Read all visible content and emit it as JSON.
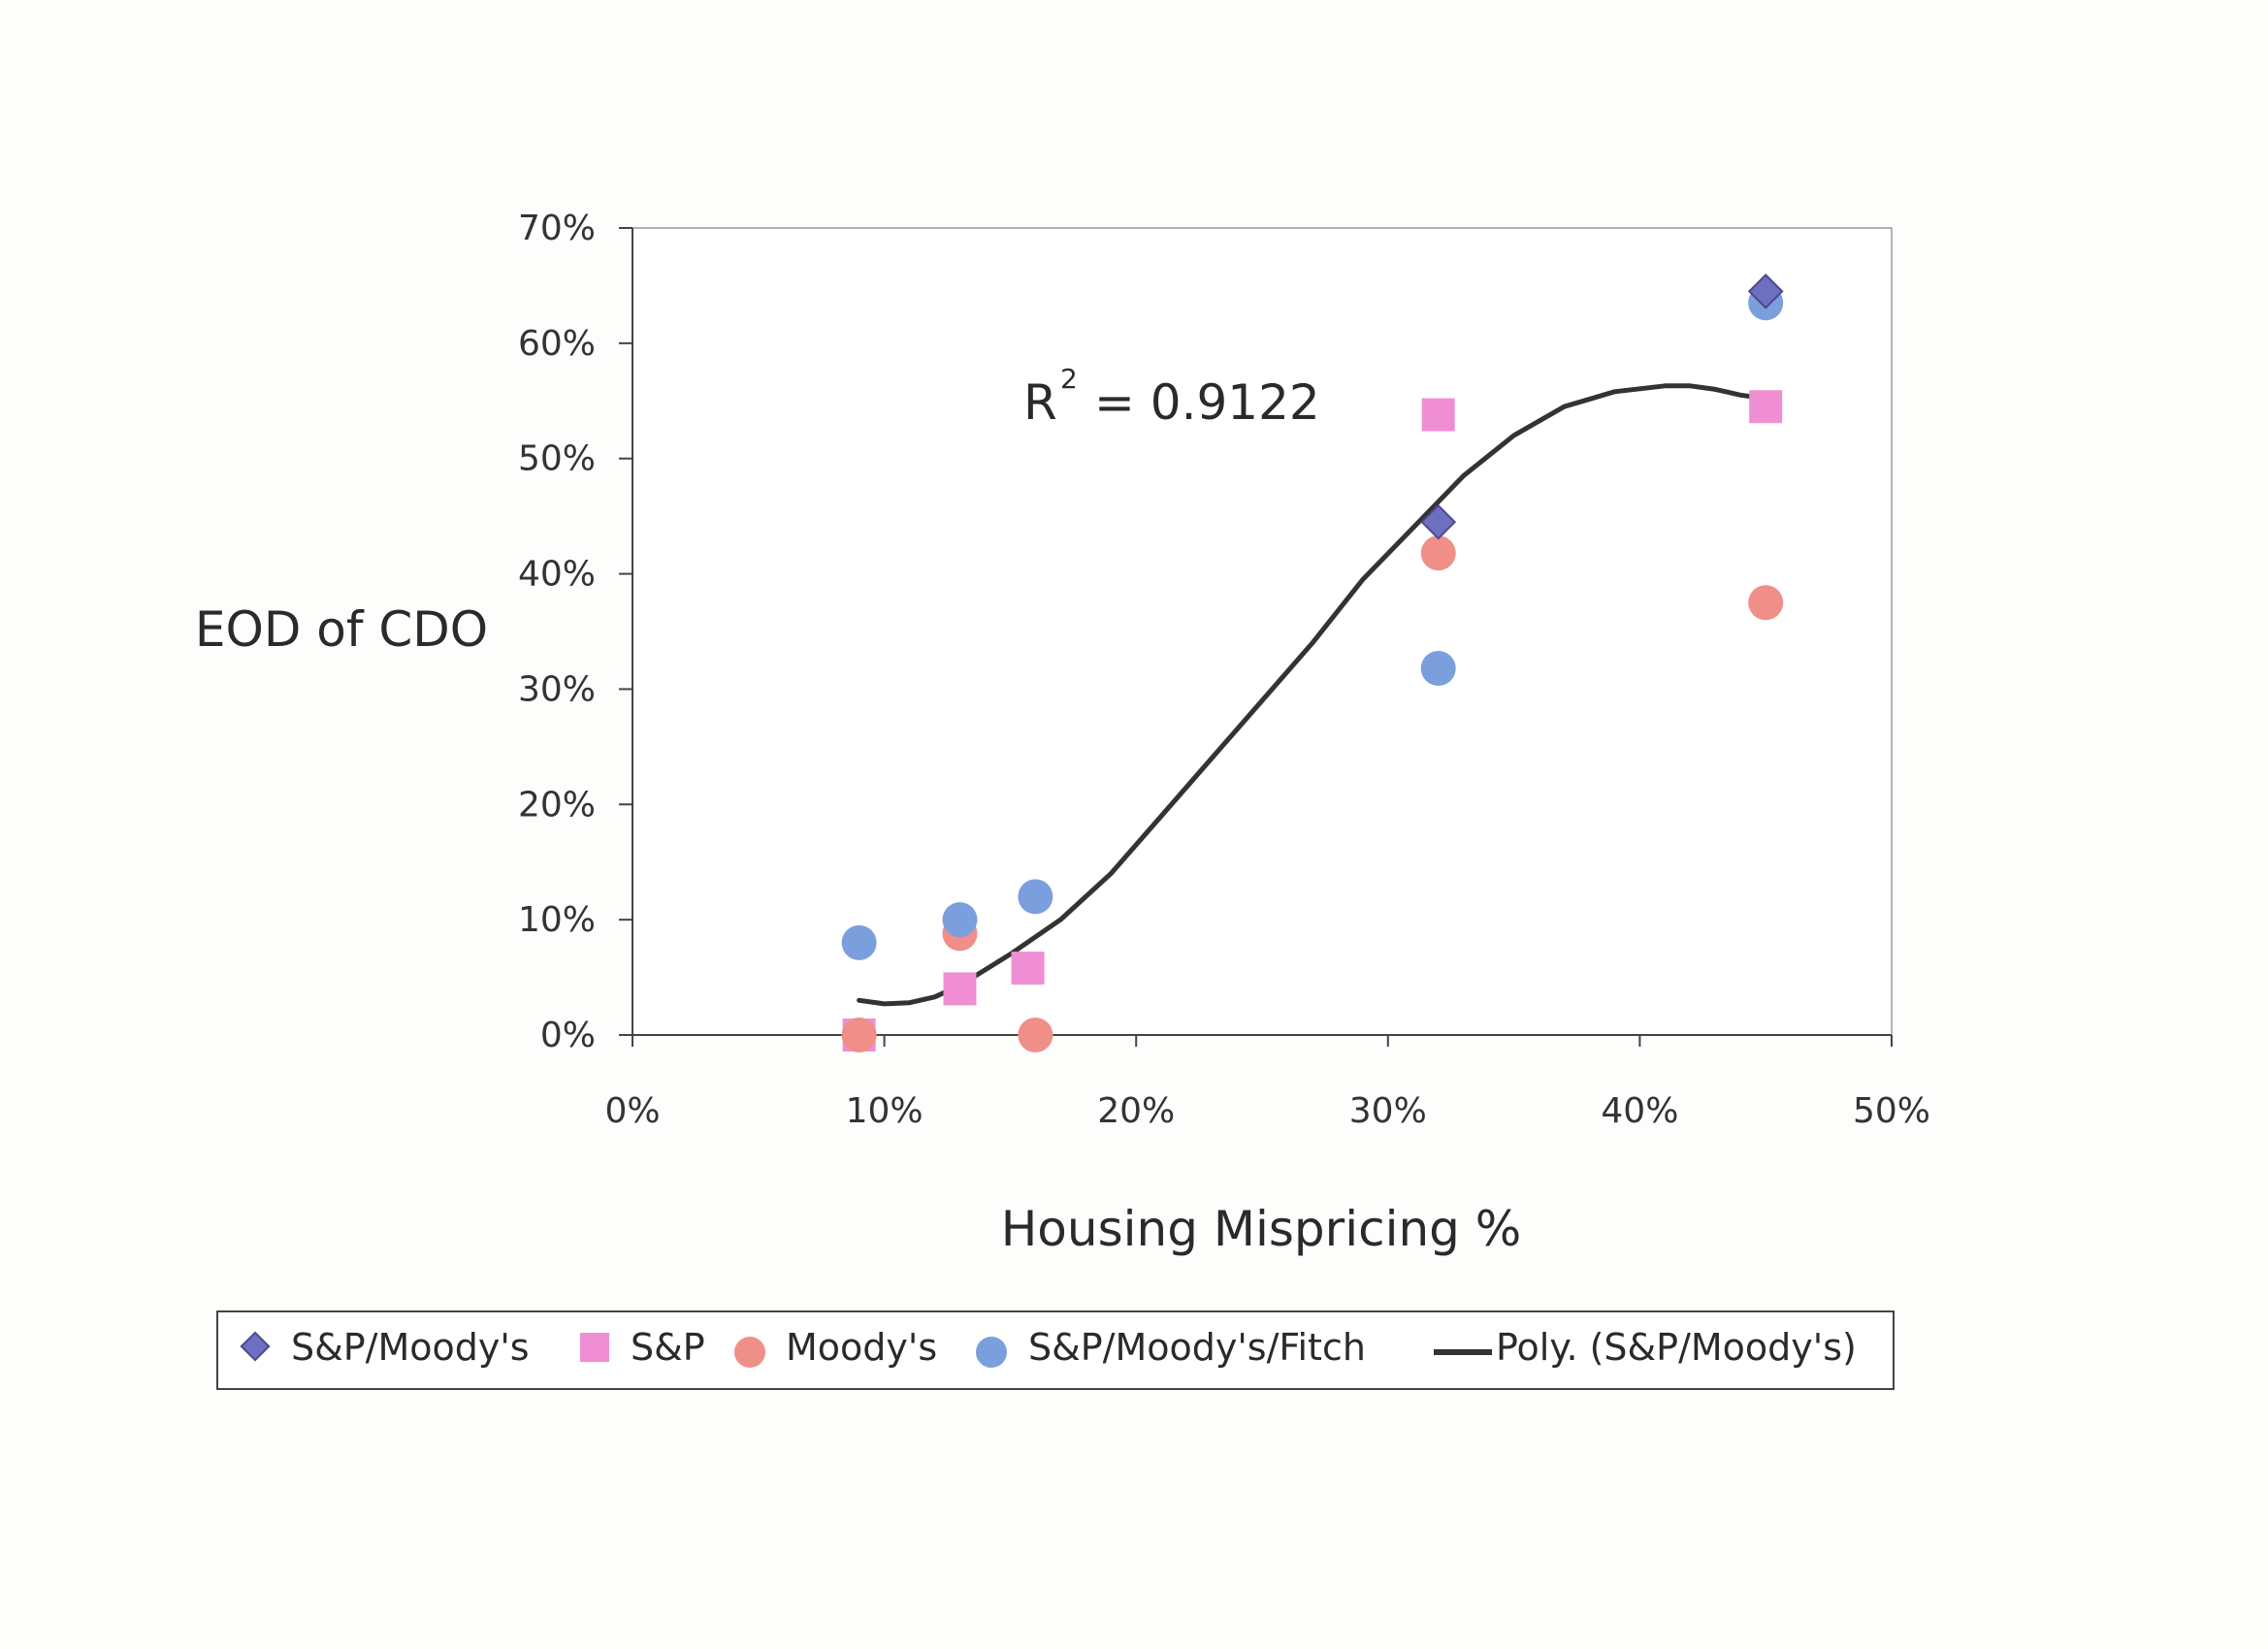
{
  "chart_data": {
    "type": "scatter",
    "xlabel": "Housing Mispricing %",
    "ylabel": "EOD of CDO",
    "xlim": [
      0,
      0.5
    ],
    "ylim": [
      0,
      0.7
    ],
    "x_ticks": [
      "0%",
      "10%",
      "20%",
      "30%",
      "40%",
      "50%"
    ],
    "y_ticks": [
      "0%",
      "10%",
      "20%",
      "30%",
      "40%",
      "50%",
      "60%",
      "70%"
    ],
    "grid": false,
    "legend_position": "bottom",
    "r2_label": "= 0.9122",
    "r2_prefix": "R",
    "r2_sup": "2",
    "series": [
      {
        "name": "S&P/Moody's",
        "marker": "diamond",
        "color": "#6f6fbf",
        "x": [
          0.32,
          0.45
        ],
        "y": [
          0.445,
          0.645
        ]
      },
      {
        "name": "S&P",
        "marker": "square",
        "color": "#f08ed3",
        "x": [
          0.09,
          0.13,
          0.157,
          0.32,
          0.45
        ],
        "y": [
          0.0,
          0.04,
          0.058,
          0.538,
          0.545
        ]
      },
      {
        "name": "Moody's",
        "marker": "circle",
        "color": "#ef8f88",
        "x": [
          0.09,
          0.13,
          0.16,
          0.32,
          0.45
        ],
        "y": [
          0.0,
          0.088,
          0.0,
          0.418,
          0.375
        ]
      },
      {
        "name": "S&P/Moody's/Fitch",
        "marker": "circle",
        "color": "#7b9fdd",
        "x": [
          0.09,
          0.13,
          0.16,
          0.32,
          0.45
        ],
        "y": [
          0.08,
          0.1,
          0.12,
          0.318,
          0.635
        ]
      }
    ],
    "trendline": {
      "name": "Poly. (S&P/Moody's)",
      "color": "#333333",
      "x": [
        0.09,
        0.1,
        0.11,
        0.12,
        0.13,
        0.15,
        0.17,
        0.19,
        0.21,
        0.23,
        0.25,
        0.27,
        0.29,
        0.31,
        0.33,
        0.35,
        0.37,
        0.39,
        0.41,
        0.42,
        0.43,
        0.44,
        0.45
      ],
      "y": [
        0.03,
        0.027,
        0.028,
        0.033,
        0.043,
        0.07,
        0.1,
        0.14,
        0.19,
        0.24,
        0.29,
        0.34,
        0.395,
        0.44,
        0.485,
        0.52,
        0.545,
        0.558,
        0.563,
        0.563,
        0.56,
        0.555,
        0.552
      ]
    }
  }
}
